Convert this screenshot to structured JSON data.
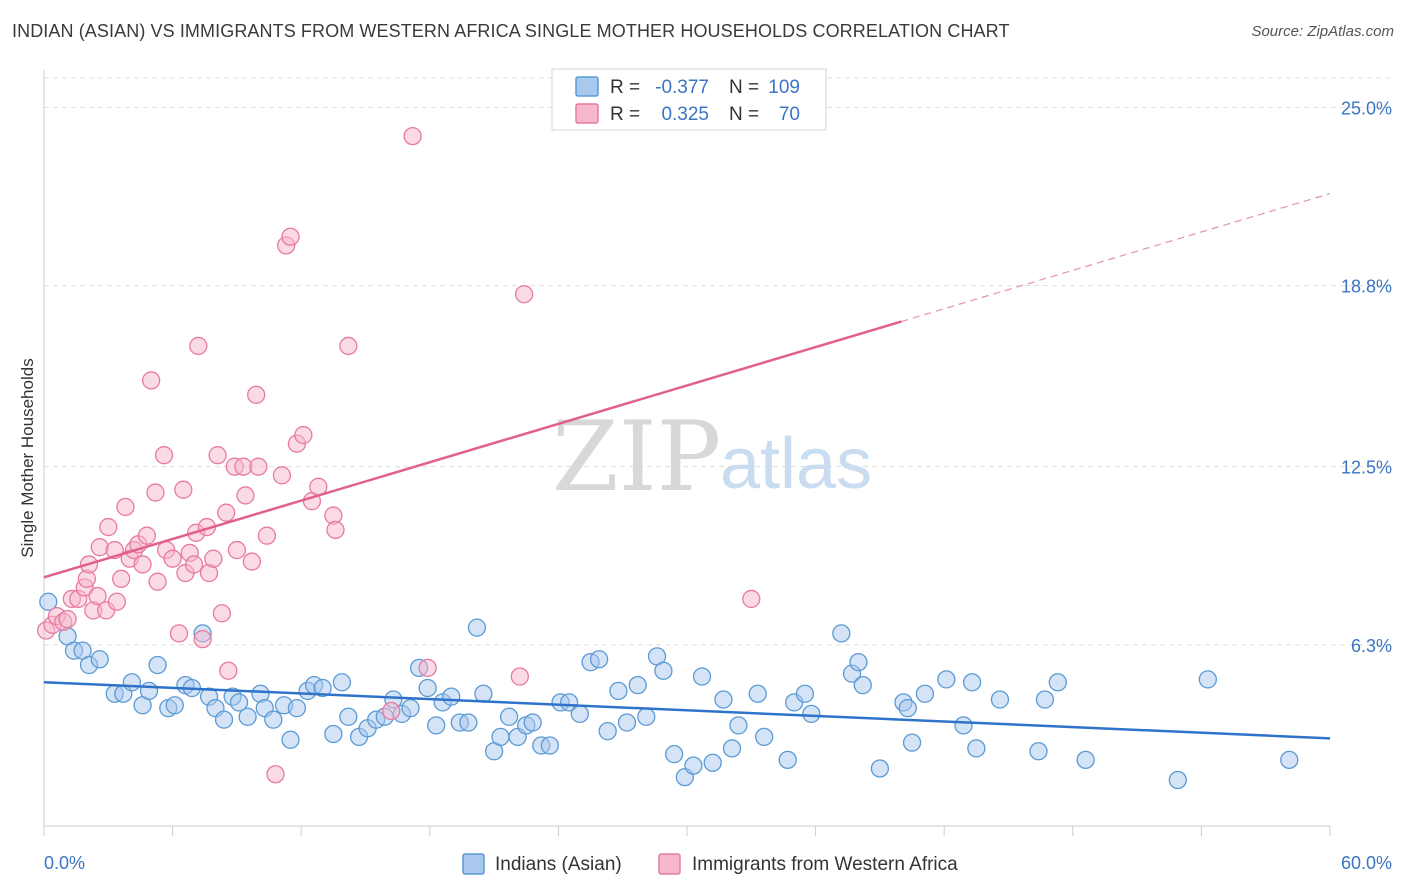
{
  "header": {
    "title": "INDIAN (ASIAN) VS IMMIGRANTS FROM WESTERN AFRICA SINGLE MOTHER HOUSEHOLDS CORRELATION CHART",
    "source": "Source: ZipAtlas.com"
  },
  "watermark": {
    "zip": "ZIP",
    "atlas": "atlas"
  },
  "colors": {
    "blue": "#5b9bd5",
    "blue_fill": "#a9c8ee",
    "blue_line": "#2f72c9",
    "pink": "#e87aa0",
    "pink_fill": "#f5b8cc",
    "pink_line": "#e0608e",
    "grid": "#dddddd",
    "tick_text": "#3a74c4"
  },
  "legend": {
    "rows": [
      {
        "r_label": "R =",
        "r_value": "-0.377",
        "n_label": "N =",
        "n_value": "109"
      },
      {
        "r_label": "R =",
        "r_value": "0.325",
        "n_label": "N =",
        "n_value": "70"
      }
    ]
  },
  "bottom_legend": {
    "series1": "Indians (Asian)",
    "series2": "Immigrants from Western Africa"
  },
  "chart_data": {
    "type": "scatter",
    "title": "INDIAN (ASIAN) VS IMMIGRANTS FROM WESTERN AFRICA SINGLE MOTHER HOUSEHOLDS CORRELATION CHART",
    "xlabel": "",
    "ylabel": "Single Mother Households",
    "xlim": [
      0,
      60
    ],
    "ylim": [
      0,
      26.3
    ],
    "x_tick_labels": [
      "0.0%",
      "60.0%"
    ],
    "y_ticks": [
      6.3,
      12.5,
      18.8,
      25.0
    ],
    "y_tick_labels": [
      "6.3%",
      "12.5%",
      "18.8%",
      "25.0%"
    ],
    "grid": true,
    "legend_position": "top-center",
    "series": [
      {
        "name": "Indians (Asian)",
        "R": -0.377,
        "N": 109,
        "trend": {
          "x0": 0,
          "y0": 5.0,
          "x1": 60,
          "y1": 3.05,
          "solid_to": 60
        },
        "points": [
          [
            0.2,
            7.8
          ],
          [
            1.1,
            6.6
          ],
          [
            1.4,
            6.1
          ],
          [
            1.8,
            6.1
          ],
          [
            2.1,
            5.6
          ],
          [
            2.6,
            5.8
          ],
          [
            3.3,
            4.6
          ],
          [
            3.7,
            4.6
          ],
          [
            4.1,
            5.0
          ],
          [
            4.6,
            4.2
          ],
          [
            4.9,
            4.7
          ],
          [
            5.3,
            5.6
          ],
          [
            5.8,
            4.1
          ],
          [
            6.1,
            4.2
          ],
          [
            6.6,
            4.9
          ],
          [
            6.9,
            4.8
          ],
          [
            7.4,
            6.7
          ],
          [
            7.7,
            4.5
          ],
          [
            8.0,
            4.1
          ],
          [
            8.4,
            3.7
          ],
          [
            8.8,
            4.5
          ],
          [
            9.1,
            4.3
          ],
          [
            9.5,
            3.8
          ],
          [
            10.1,
            4.6
          ],
          [
            10.3,
            4.1
          ],
          [
            10.7,
            3.7
          ],
          [
            11.2,
            4.2
          ],
          [
            11.5,
            3.0
          ],
          [
            11.8,
            4.1
          ],
          [
            12.3,
            4.7
          ],
          [
            12.6,
            4.9
          ],
          [
            13.0,
            4.8
          ],
          [
            13.5,
            3.2
          ],
          [
            13.9,
            5.0
          ],
          [
            14.2,
            3.8
          ],
          [
            14.7,
            3.1
          ],
          [
            15.1,
            3.4
          ],
          [
            15.5,
            3.7
          ],
          [
            15.9,
            3.8
          ],
          [
            16.3,
            4.4
          ],
          [
            16.7,
            3.9
          ],
          [
            17.1,
            4.1
          ],
          [
            17.5,
            5.5
          ],
          [
            17.9,
            4.8
          ],
          [
            18.3,
            3.5
          ],
          [
            18.6,
            4.3
          ],
          [
            19.0,
            4.5
          ],
          [
            19.4,
            3.6
          ],
          [
            19.8,
            3.6
          ],
          [
            20.2,
            6.9
          ],
          [
            20.5,
            4.6
          ],
          [
            21.0,
            2.6
          ],
          [
            21.3,
            3.1
          ],
          [
            21.7,
            3.8
          ],
          [
            22.1,
            3.1
          ],
          [
            22.5,
            3.5
          ],
          [
            22.8,
            3.6
          ],
          [
            23.2,
            2.8
          ],
          [
            23.6,
            2.8
          ],
          [
            24.1,
            4.3
          ],
          [
            24.5,
            4.3
          ],
          [
            25.0,
            3.9
          ],
          [
            25.5,
            5.7
          ],
          [
            25.9,
            5.8
          ],
          [
            26.3,
            3.3
          ],
          [
            26.8,
            4.7
          ],
          [
            27.2,
            3.6
          ],
          [
            27.7,
            4.9
          ],
          [
            28.1,
            3.8
          ],
          [
            28.6,
            5.9
          ],
          [
            28.9,
            5.4
          ],
          [
            29.4,
            2.5
          ],
          [
            29.9,
            1.7
          ],
          [
            30.3,
            2.1
          ],
          [
            30.7,
            5.2
          ],
          [
            31.2,
            2.2
          ],
          [
            31.7,
            4.4
          ],
          [
            32.1,
            2.7
          ],
          [
            32.4,
            3.5
          ],
          [
            33.3,
            4.6
          ],
          [
            33.6,
            3.1
          ],
          [
            34.7,
            2.3
          ],
          [
            35.0,
            4.3
          ],
          [
            35.5,
            4.6
          ],
          [
            35.8,
            3.9
          ],
          [
            37.2,
            6.7
          ],
          [
            37.7,
            5.3
          ],
          [
            38.0,
            5.7
          ],
          [
            38.2,
            4.9
          ],
          [
            39.0,
            2.0
          ],
          [
            40.1,
            4.3
          ],
          [
            40.3,
            4.1
          ],
          [
            40.5,
            2.9
          ],
          [
            41.1,
            4.6
          ],
          [
            42.1,
            5.1
          ],
          [
            42.9,
            3.5
          ],
          [
            43.3,
            5.0
          ],
          [
            43.5,
            2.7
          ],
          [
            44.6,
            4.4
          ],
          [
            46.4,
            2.6
          ],
          [
            46.7,
            4.4
          ],
          [
            47.3,
            5.0
          ],
          [
            48.6,
            2.3
          ],
          [
            52.9,
            1.6
          ],
          [
            54.3,
            5.1
          ],
          [
            58.1,
            2.3
          ]
        ]
      },
      {
        "name": "Immigrants from Western Africa",
        "R": 0.325,
        "N": 70,
        "trend": {
          "x0": 0,
          "y0": 8.65,
          "x1": 60,
          "y1": 22.0,
          "solid_to": 40.0
        },
        "points": [
          [
            0.1,
            6.8
          ],
          [
            0.4,
            7.0
          ],
          [
            0.6,
            7.3
          ],
          [
            0.9,
            7.1
          ],
          [
            1.1,
            7.2
          ],
          [
            1.3,
            7.9
          ],
          [
            1.6,
            7.9
          ],
          [
            1.9,
            8.3
          ],
          [
            2.0,
            8.6
          ],
          [
            2.1,
            9.1
          ],
          [
            2.3,
            7.5
          ],
          [
            2.5,
            8.0
          ],
          [
            2.6,
            9.7
          ],
          [
            2.9,
            7.5
          ],
          [
            3.0,
            10.4
          ],
          [
            3.3,
            9.6
          ],
          [
            3.4,
            7.8
          ],
          [
            3.6,
            8.6
          ],
          [
            3.8,
            11.1
          ],
          [
            4.0,
            9.3
          ],
          [
            4.2,
            9.6
          ],
          [
            4.4,
            9.8
          ],
          [
            4.6,
            9.1
          ],
          [
            4.8,
            10.1
          ],
          [
            5.0,
            15.5
          ],
          [
            5.2,
            11.6
          ],
          [
            5.3,
            8.5
          ],
          [
            5.6,
            12.9
          ],
          [
            5.7,
            9.6
          ],
          [
            6.0,
            9.3
          ],
          [
            6.3,
            6.7
          ],
          [
            6.5,
            11.7
          ],
          [
            6.6,
            8.8
          ],
          [
            6.8,
            9.5
          ],
          [
            7.0,
            9.1
          ],
          [
            7.1,
            10.2
          ],
          [
            7.2,
            16.7
          ],
          [
            7.4,
            6.5
          ],
          [
            7.6,
            10.4
          ],
          [
            7.7,
            8.8
          ],
          [
            7.9,
            9.3
          ],
          [
            8.1,
            12.9
          ],
          [
            8.3,
            7.4
          ],
          [
            8.5,
            10.9
          ],
          [
            8.6,
            5.4
          ],
          [
            8.9,
            12.5
          ],
          [
            9.0,
            9.6
          ],
          [
            9.3,
            12.5
          ],
          [
            9.4,
            11.5
          ],
          [
            9.7,
            9.2
          ],
          [
            9.9,
            15.0
          ],
          [
            10.0,
            12.5
          ],
          [
            10.4,
            10.1
          ],
          [
            10.8,
            1.8
          ],
          [
            11.1,
            12.2
          ],
          [
            11.3,
            20.2
          ],
          [
            11.5,
            20.5
          ],
          [
            11.8,
            13.3
          ],
          [
            12.1,
            13.6
          ],
          [
            12.5,
            11.3
          ],
          [
            12.8,
            11.8
          ],
          [
            13.5,
            10.8
          ],
          [
            13.6,
            10.3
          ],
          [
            14.2,
            16.7
          ],
          [
            16.2,
            4.0
          ],
          [
            17.2,
            24.0
          ],
          [
            17.9,
            5.5
          ],
          [
            22.4,
            18.5
          ],
          [
            33.0,
            7.9
          ],
          [
            22.2,
            5.2
          ]
        ]
      }
    ]
  }
}
